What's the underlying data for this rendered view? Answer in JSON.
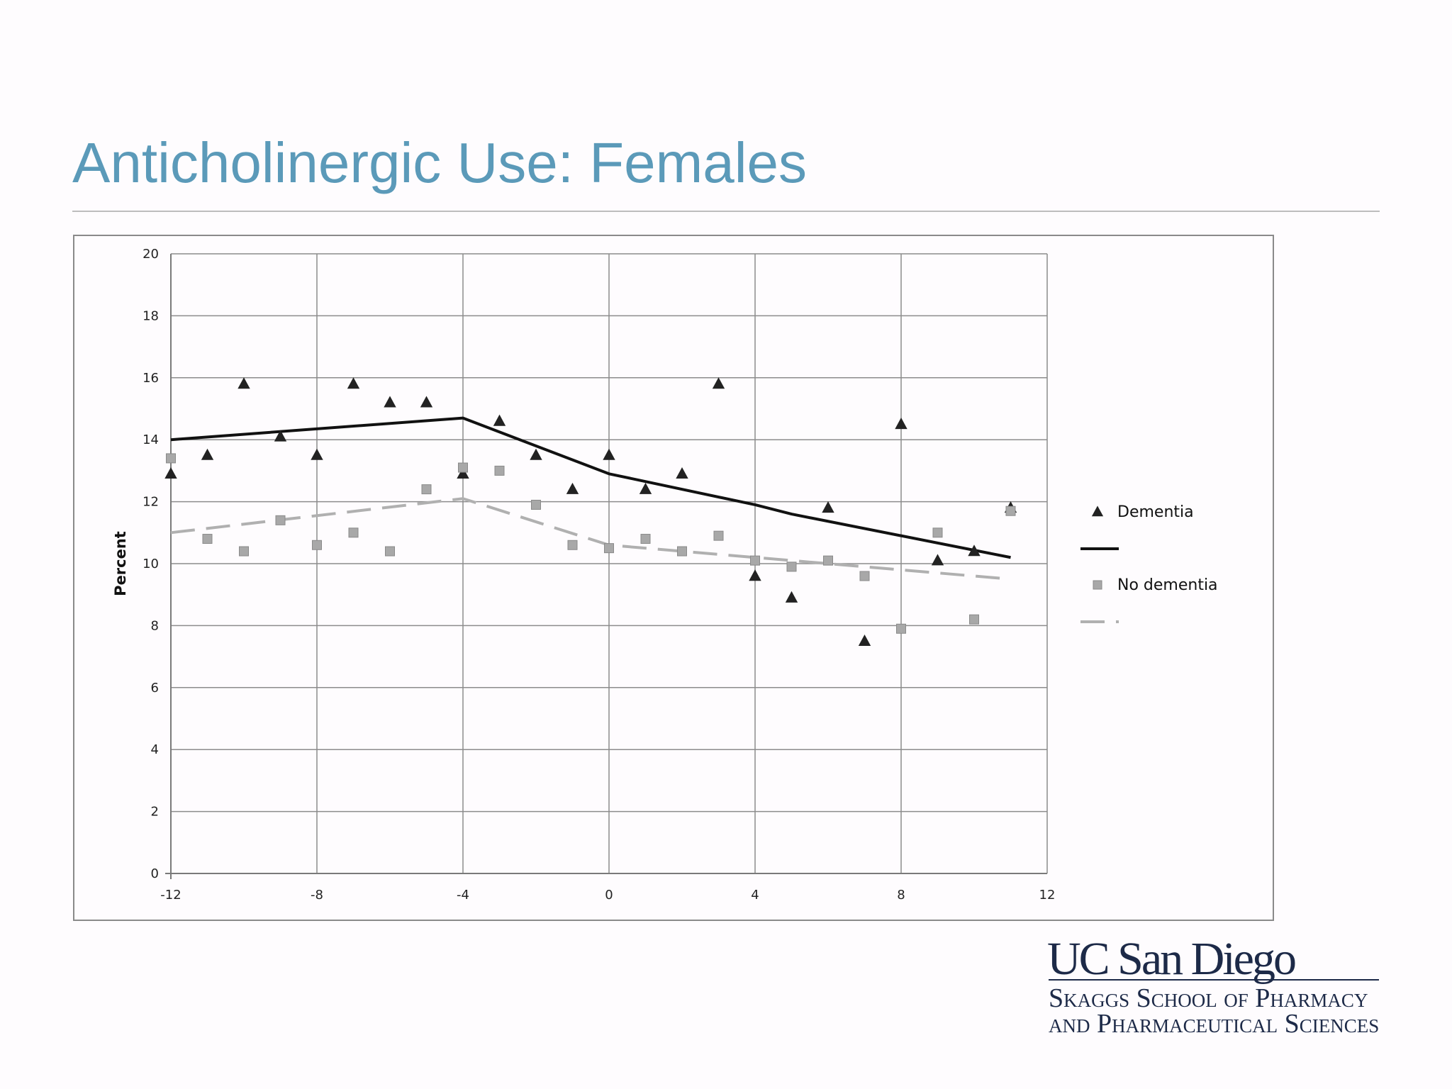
{
  "slide": {
    "title": "Anticholinergic Use: Females"
  },
  "logo": {
    "name": "UC San Diego",
    "school_line1": "Skaggs School of Pharmacy",
    "school_line2": "and Pharmaceutical Sciences"
  },
  "chart_data": {
    "type": "scatter",
    "title": "",
    "xlabel": "",
    "ylabel": "Percent",
    "xlim": [
      -12,
      12
    ],
    "ylim": [
      0,
      20
    ],
    "xticks": [
      -12,
      -8,
      -4,
      0,
      4,
      8,
      12
    ],
    "yticks": [
      0,
      2,
      4,
      6,
      8,
      10,
      12,
      14,
      16,
      18,
      20
    ],
    "grid": true,
    "legend_position": "right",
    "legend": [
      "Dementia",
      "",
      "No dementia",
      ""
    ],
    "series": [
      {
        "name": "Dementia",
        "kind": "points",
        "marker": "triangle",
        "color": "#222222",
        "x": [
          -12,
          -11,
          -10,
          -9,
          -8,
          -7,
          -6,
          -5,
          -4,
          -3,
          -2,
          -1,
          0,
          1,
          2,
          3,
          4,
          5,
          6,
          7,
          8,
          9,
          10,
          11
        ],
        "y": [
          12.9,
          13.5,
          15.8,
          14.1,
          13.5,
          15.8,
          15.2,
          15.2,
          12.9,
          14.6,
          13.5,
          12.4,
          13.5,
          12.4,
          12.9,
          15.8,
          9.6,
          8.9,
          11.8,
          7.5,
          14.5,
          10.1,
          10.4,
          11.8
        ]
      },
      {
        "name": "",
        "kind": "line",
        "style": "solid",
        "color": "#111111",
        "x": [
          -12,
          -4,
          0,
          4,
          5,
          11
        ],
        "y": [
          14.0,
          14.7,
          12.9,
          11.9,
          11.6,
          10.2
        ]
      },
      {
        "name": "No dementia",
        "kind": "points",
        "marker": "square",
        "color": "#9a9a9a",
        "x": [
          -12,
          -11,
          -10,
          -9,
          -8,
          -7,
          -6,
          -5,
          -4,
          -3,
          -2,
          -1,
          0,
          1,
          2,
          3,
          4,
          5,
          6,
          7,
          8,
          9,
          10,
          11
        ],
        "y": [
          13.4,
          10.8,
          10.4,
          11.4,
          10.6,
          11.0,
          10.4,
          12.4,
          13.1,
          13.0,
          11.9,
          10.6,
          10.5,
          10.8,
          10.4,
          10.9,
          10.1,
          9.9,
          10.1,
          9.6,
          7.9,
          11.0,
          8.2,
          11.7
        ]
      },
      {
        "name": "",
        "kind": "line",
        "style": "dashed",
        "color": "#b0b0b0",
        "x": [
          -12,
          -4,
          0,
          11
        ],
        "y": [
          11.0,
          12.1,
          10.6,
          9.5
        ]
      }
    ]
  }
}
